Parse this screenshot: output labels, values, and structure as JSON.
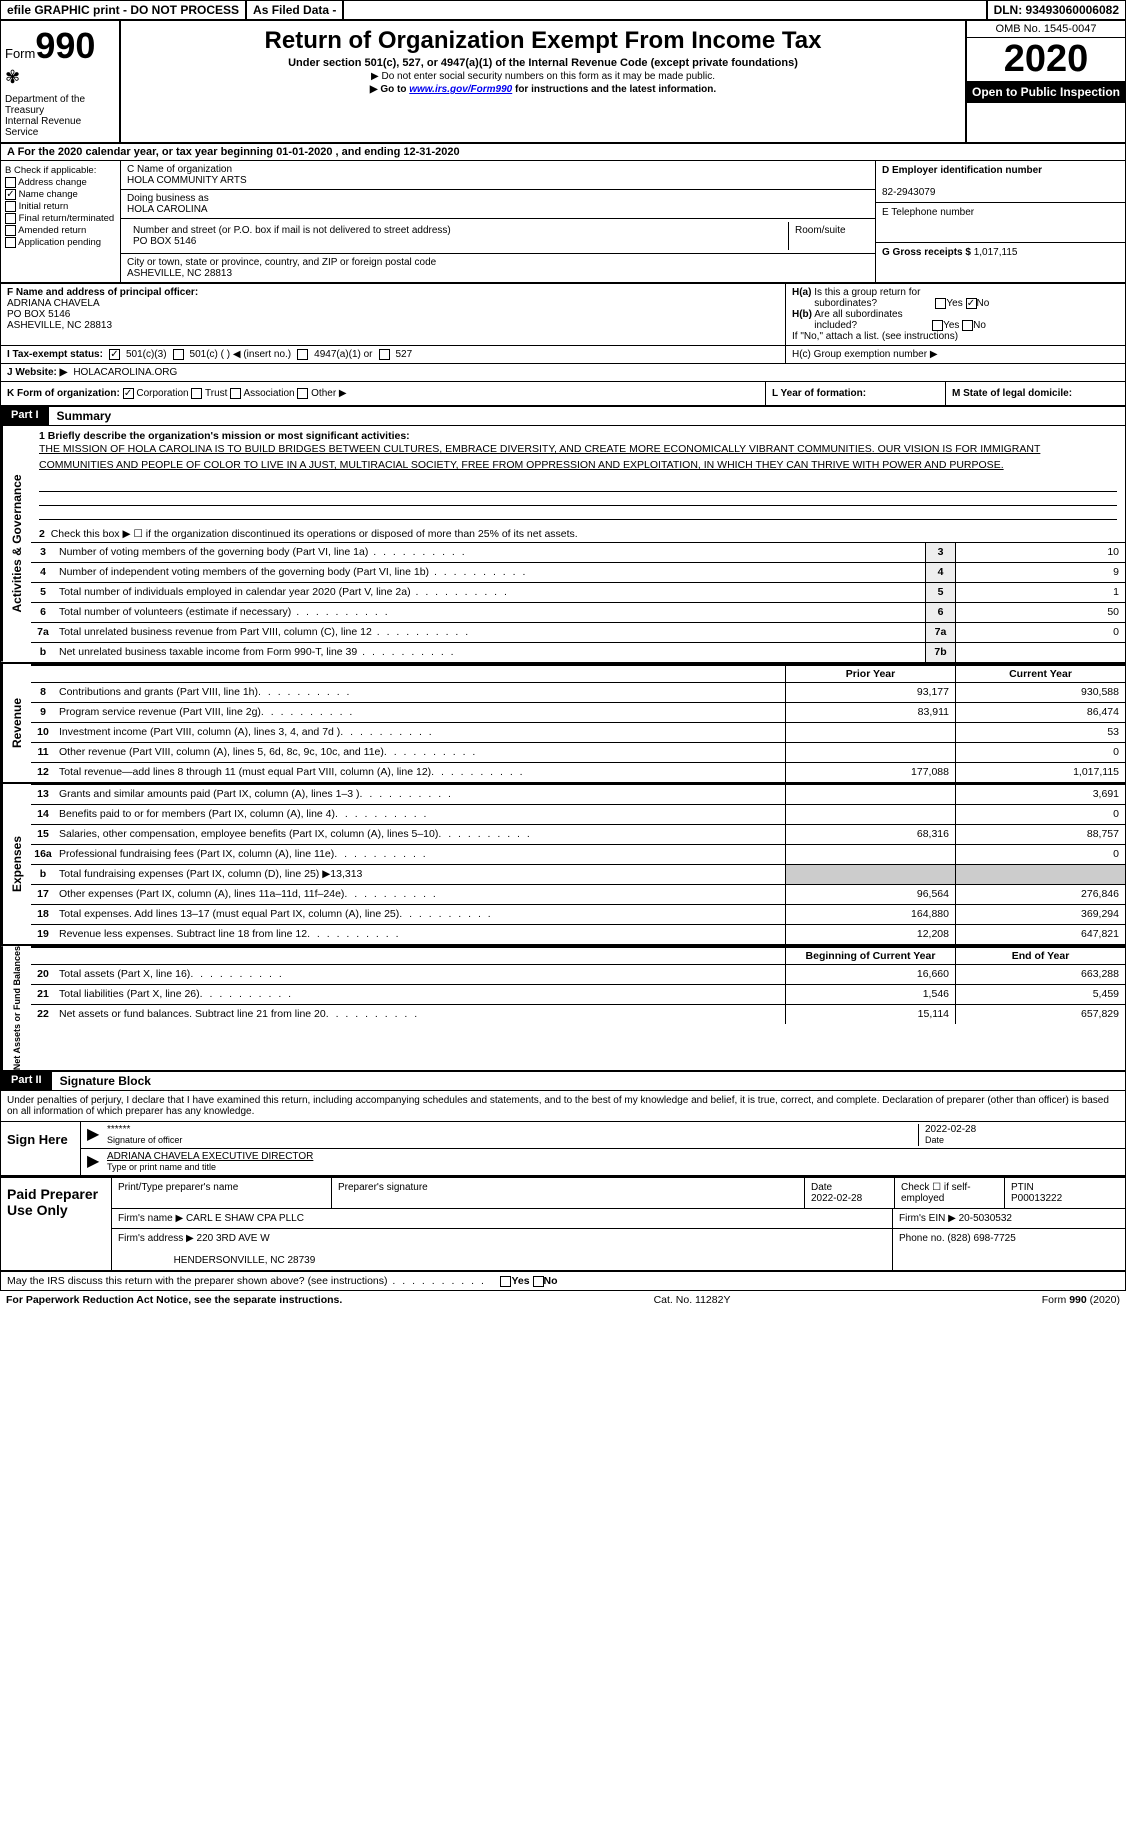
{
  "topbar": {
    "efile": "efile GRAPHIC print - DO NOT PROCESS",
    "asfiled": "As Filed Data -",
    "dln": "DLN: 93493060006082"
  },
  "header": {
    "form_label": "Form",
    "form_num": "990",
    "dept": "Department of the Treasury\nInternal Revenue Service",
    "title": "Return of Organization Exempt From Income Tax",
    "subtitle": "Under section 501(c), 527, or 4947(a)(1) of the Internal Revenue Code (except private foundations)",
    "warn": "▶ Do not enter social security numbers on this form as it may be made public.",
    "goto": "▶ Go to www.irs.gov/Form990 for instructions and the latest information.",
    "omb": "OMB No. 1545-0047",
    "year": "2020",
    "inspect": "Open to Public Inspection"
  },
  "line_a": "A  For the 2020 calendar year, or tax year beginning 01-01-2020   , and ending 12-31-2020",
  "col_b": {
    "title": "B Check if applicable:",
    "items": [
      "Address change",
      "Name change",
      "Initial return",
      "Final return/terminated",
      "Amended return",
      "Application pending"
    ],
    "checked_idx": 1
  },
  "col_c": {
    "name_lbl": "C Name of organization",
    "name": "HOLA COMMUNITY ARTS",
    "dba_lbl": "Doing business as",
    "dba": "HOLA CAROLINA",
    "street_lbl": "Number and street (or P.O. box if mail is not delivered to street address)",
    "street": "PO BOX 5146",
    "room_lbl": "Room/suite",
    "city_lbl": "City or town, state or province, country, and ZIP or foreign postal code",
    "city": "ASHEVILLE, NC  28813"
  },
  "col_d": {
    "ein_lbl": "D Employer identification number",
    "ein": "82-2943079",
    "phone_lbl": "E Telephone number",
    "gross_lbl": "G Gross receipts $",
    "gross": "1,017,115"
  },
  "col_f": {
    "lbl": "F  Name and address of principal officer:",
    "name": "ADRIANA CHAVELA",
    "street": "PO BOX 5146",
    "city": "ASHEVILLE, NC  28813"
  },
  "col_h": {
    "ha": "H(a)  Is this a group return for subordinates?",
    "hb": "H(b)  Are all subordinates included?",
    "hb2": "If \"No,\" attach a list. (see instructions)",
    "hc": "H(c)  Group exemption number ▶"
  },
  "line_i": {
    "lbl": "I  Tax-exempt status:",
    "opts": [
      "501(c)(3)",
      "501(c) (  ) ◀ (insert no.)",
      "4947(a)(1) or",
      "527"
    ],
    "checked_idx": 0
  },
  "line_j": {
    "lbl": "J  Website: ▶",
    "val": "HOLACAROLINA.ORG"
  },
  "line_k": {
    "lbl": "K Form of organization:",
    "opts": [
      "Corporation",
      "Trust",
      "Association",
      "Other ▶"
    ],
    "checked_idx": 0,
    "l": "L Year of formation:",
    "m": "M State of legal domicile:"
  },
  "part1": {
    "hdr": "Part I",
    "title": "Summary",
    "mission_lbl": "1  Briefly describe the organization's mission or most significant activities:",
    "mission": "THE MISSION OF HOLA CAROLINA IS TO BUILD BRIDGES BETWEEN CULTURES, EMBRACE DIVERSITY, AND CREATE MORE ECONOMICALLY VIBRANT COMMUNITIES. OUR VISION IS FOR IMMIGRANT COMMUNITIES AND PEOPLE OF COLOR TO LIVE IN A JUST, MULTIRACIAL SOCIETY, FREE FROM OPPRESSION AND EXPLOITATION, IN WHICH THEY CAN THRIVE WITH POWER AND PURPOSE.",
    "line2": "Check this box ▶ ☐ if the organization discontinued its operations or disposed of more than 25% of its net assets.",
    "gov_rows": [
      {
        "n": "3",
        "lbl": "Number of voting members of the governing body (Part VI, line 1a)",
        "box": "3",
        "val": "10"
      },
      {
        "n": "4",
        "lbl": "Number of independent voting members of the governing body (Part VI, line 1b)",
        "box": "4",
        "val": "9"
      },
      {
        "n": "5",
        "lbl": "Total number of individuals employed in calendar year 2020 (Part V, line 2a)",
        "box": "5",
        "val": "1"
      },
      {
        "n": "6",
        "lbl": "Total number of volunteers (estimate if necessary)",
        "box": "6",
        "val": "50"
      },
      {
        "n": "7a",
        "lbl": "Total unrelated business revenue from Part VIII, column (C), line 12",
        "box": "7a",
        "val": "0"
      },
      {
        "n": "b",
        "lbl": "Net unrelated business taxable income from Form 990-T, line 39",
        "box": "7b",
        "val": ""
      }
    ],
    "hdr_prior": "Prior Year",
    "hdr_curr": "Current Year",
    "revenue_rows": [
      {
        "n": "8",
        "lbl": "Contributions and grants (Part VIII, line 1h)",
        "c1": "93,177",
        "c2": "930,588"
      },
      {
        "n": "9",
        "lbl": "Program service revenue (Part VIII, line 2g)",
        "c1": "83,911",
        "c2": "86,474"
      },
      {
        "n": "10",
        "lbl": "Investment income (Part VIII, column (A), lines 3, 4, and 7d )",
        "c1": "",
        "c2": "53"
      },
      {
        "n": "11",
        "lbl": "Other revenue (Part VIII, column (A), lines 5, 6d, 8c, 9c, 10c, and 11e)",
        "c1": "",
        "c2": "0"
      },
      {
        "n": "12",
        "lbl": "Total revenue—add lines 8 through 11 (must equal Part VIII, column (A), line 12)",
        "c1": "177,088",
        "c2": "1,017,115"
      }
    ],
    "expense_rows": [
      {
        "n": "13",
        "lbl": "Grants and similar amounts paid (Part IX, column (A), lines 1–3 )",
        "c1": "",
        "c2": "3,691"
      },
      {
        "n": "14",
        "lbl": "Benefits paid to or for members (Part IX, column (A), line 4)",
        "c1": "",
        "c2": "0"
      },
      {
        "n": "15",
        "lbl": "Salaries, other compensation, employee benefits (Part IX, column (A), lines 5–10)",
        "c1": "68,316",
        "c2": "88,757"
      },
      {
        "n": "16a",
        "lbl": "Professional fundraising fees (Part IX, column (A), line 11e)",
        "c1": "",
        "c2": "0"
      },
      {
        "n": "b",
        "lbl": "Total fundraising expenses (Part IX, column (D), line 25) ▶13,313",
        "c1": "shade",
        "c2": "shade"
      },
      {
        "n": "17",
        "lbl": "Other expenses (Part IX, column (A), lines 11a–11d, 11f–24e)",
        "c1": "96,564",
        "c2": "276,846"
      },
      {
        "n": "18",
        "lbl": "Total expenses. Add lines 13–17 (must equal Part IX, column (A), line 25)",
        "c1": "164,880",
        "c2": "369,294"
      },
      {
        "n": "19",
        "lbl": "Revenue less expenses. Subtract line 18 from line 12",
        "c1": "12,208",
        "c2": "647,821"
      }
    ],
    "hdr_beg": "Beginning of Current Year",
    "hdr_end": "End of Year",
    "net_rows": [
      {
        "n": "20",
        "lbl": "Total assets (Part X, line 16)",
        "c1": "16,660",
        "c2": "663,288"
      },
      {
        "n": "21",
        "lbl": "Total liabilities (Part X, line 26)",
        "c1": "1,546",
        "c2": "5,459"
      },
      {
        "n": "22",
        "lbl": "Net assets or fund balances. Subtract line 21 from line 20",
        "c1": "15,114",
        "c2": "657,829"
      }
    ],
    "sidebars": {
      "gov": "Activities & Governance",
      "rev": "Revenue",
      "exp": "Expenses",
      "net": "Net Assets or Fund Balances"
    }
  },
  "part2": {
    "hdr": "Part II",
    "title": "Signature Block",
    "decl": "Under penalties of perjury, I declare that I have examined this return, including accompanying schedules and statements, and to the best of my knowledge and belief, it is true, correct, and complete. Declaration of preparer (other than officer) is based on all information of which preparer has any knowledge.",
    "sign_here": "Sign Here",
    "sig_stars": "******",
    "sig_officer": "Signature of officer",
    "sig_date": "2022-02-28",
    "date_lbl": "Date",
    "officer_name": "ADRIANA CHAVELA EXECUTIVE DIRECTOR",
    "type_name": "Type or print name and title",
    "paid": "Paid Preparer Use Only",
    "prep_name_lbl": "Print/Type preparer's name",
    "prep_sig_lbl": "Preparer's signature",
    "prep_date_lbl": "Date",
    "prep_date": "2022-02-28",
    "check_self": "Check ☐ if self-employed",
    "ptin_lbl": "PTIN",
    "ptin": "P00013222",
    "firm_lbl": "Firm's name    ▶",
    "firm": "CARL E SHAW CPA PLLC",
    "firm_ein_lbl": "Firm's EIN ▶",
    "firm_ein": "20-5030532",
    "firm_addr_lbl": "Firm's address ▶",
    "firm_addr": "220 3RD AVE W",
    "firm_city": "HENDERSONVILLE, NC  28739",
    "phone_lbl": "Phone no.",
    "phone": "(828) 698-7725",
    "discuss": "May the IRS discuss this return with the preparer shown above? (see instructions)"
  },
  "footer": {
    "pra": "For Paperwork Reduction Act Notice, see the separate instructions.",
    "cat": "Cat. No. 11282Y",
    "form": "Form 990 (2020)"
  }
}
